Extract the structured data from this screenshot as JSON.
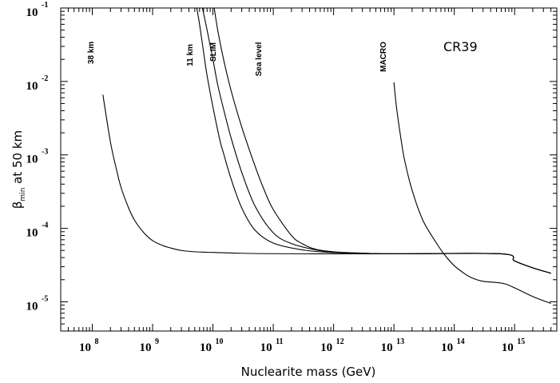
{
  "chart_data": {
    "type": "line",
    "title": "",
    "annotation": "CR39",
    "xlabel": "Nuclearite mass (GeV)",
    "ylabel": {
      "symbol": "β",
      "subscript": "min",
      "rest": " at 50 km"
    },
    "x_scale": "log",
    "y_scale": "log",
    "xlim": [
      30000000.0,
      5000000000000000.0
    ],
    "ylim": [
      4e-06,
      0.1
    ],
    "x_ticks": [
      {
        "base": "10",
        "exp": "8",
        "value": 100000000.0
      },
      {
        "base": "10",
        "exp": "9",
        "value": 1000000000.0
      },
      {
        "base": "10",
        "exp": "10",
        "value": 10000000000.0
      },
      {
        "base": "10",
        "exp": "11",
        "value": 100000000000.0
      },
      {
        "base": "10",
        "exp": "12",
        "value": 1000000000000.0
      },
      {
        "base": "10",
        "exp": "13",
        "value": 10000000000000.0
      },
      {
        "base": "10",
        "exp": "14",
        "value": 100000000000000.0
      },
      {
        "base": "10",
        "exp": "15",
        "value": 1000000000000000.0
      }
    ],
    "y_ticks": [
      {
        "base": "10",
        "exp": "-1",
        "value": 0.1
      },
      {
        "base": "10",
        "exp": "-2",
        "value": 0.01
      },
      {
        "base": "10",
        "exp": "-3",
        "value": 0.001
      },
      {
        "base": "10",
        "exp": "-4",
        "value": 0.0001
      },
      {
        "base": "10",
        "exp": "-5",
        "value": 1e-05
      }
    ],
    "series": [
      {
        "name": "38 km",
        "x": [
          150000000.0,
          200000000.0,
          250000000.0,
          300000000.0,
          400000000.0,
          500000000.0,
          700000000.0,
          1000000000.0,
          1500000000.0,
          2000000000.0,
          3000000000.0,
          5000000000.0,
          10000000000.0,
          30000000000.0,
          100000000000.0,
          1000000000000.0,
          10000000000000.0,
          600000000000000.0,
          1000000000000000.0,
          2000000000000000.0,
          4000000000000000.0
        ],
        "y": [
          0.0066,
          0.0015,
          0.00065,
          0.00036,
          0.00019,
          0.00013,
          8.9e-05,
          6.8e-05,
          5.8e-05,
          5.4e-05,
          5e-05,
          4.8e-05,
          4.7e-05,
          4.58e-05,
          4.52e-05,
          4.5e-05,
          4.5e-05,
          4.5e-05,
          3.6e-05,
          2.9e-05,
          2.45e-05
        ]
      },
      {
        "name": "11 km",
        "x": [
          5400000000.0,
          6000000000.0,
          7000000000.0,
          8000000000.0,
          10000000000.0,
          13000000000.0,
          15000000000.0,
          20000000000.0,
          30000000000.0,
          50000000000.0,
          100000000000.0,
          300000000000.0,
          1000000000000.0,
          10000000000000.0,
          600000000000000.0,
          1000000000000000.0,
          2000000000000000.0,
          4000000000000000.0
        ],
        "y": [
          0.1,
          0.06,
          0.025,
          0.012,
          0.0045,
          0.0016,
          0.00105,
          0.00047,
          0.00019,
          9.4e-05,
          6.3e-05,
          5.1e-05,
          4.68e-05,
          4.5e-05,
          4.5e-05,
          3.6e-05,
          2.9e-05,
          2.45e-05
        ]
      },
      {
        "name": "SLIM",
        "x": [
          6700000000.0,
          8000000000.0,
          10000000000.0,
          12000000000.0,
          15000000000.0,
          20000000000.0,
          30000000000.0,
          50000000000.0,
          100000000000.0,
          200000000000.0,
          500000000000.0,
          1000000000000.0,
          3000000000000.0,
          10000000000000.0,
          600000000000000.0,
          1000000000000000.0,
          2000000000000000.0,
          4000000000000000.0
        ],
        "y": [
          0.1,
          0.05,
          0.02,
          0.009,
          0.0042,
          0.0017,
          0.00058,
          0.0002,
          8.7e-05,
          6.2e-05,
          5.1e-05,
          4.75e-05,
          4.58e-05,
          4.5e-05,
          4.5e-05,
          3.6e-05,
          2.9e-05,
          2.45e-05
        ]
      },
      {
        "name": "Sea level",
        "x": [
          10500000000.0,
          12000000000.0,
          15000000000.0,
          20000000000.0,
          30000000000.0,
          50000000000.0,
          70000000000.0,
          100000000000.0,
          200000000000.0,
          300000000000.0,
          500000000000.0,
          1000000000000.0,
          3000000000000.0,
          10000000000000.0,
          600000000000000.0,
          1000000000000000.0,
          2000000000000000.0,
          4000000000000000.0
        ],
        "y": [
          0.1,
          0.05,
          0.02,
          0.0075,
          0.0024,
          0.0007,
          0.00034,
          0.00018,
          8e-05,
          6.2e-05,
          5.2e-05,
          4.8e-05,
          4.6e-05,
          4.5e-05,
          4.5e-05,
          3.6e-05,
          2.9e-05,
          2.45e-05
        ]
      },
      {
        "name": "MACRO",
        "x": [
          10000000000000.0,
          11000000000000.0,
          13000000000000.0,
          15000000000000.0,
          20000000000000.0,
          30000000000000.0,
          50000000000000.0,
          70000000000000.0,
          100000000000000.0,
          150000000000000.0,
          200000000000000.0,
          300000000000000.0,
          500000000000000.0,
          700000000000000.0,
          1000000000000000.0,
          2000000000000000.0,
          4000000000000000.0
        ],
        "y": [
          0.0097,
          0.0045,
          0.0017,
          0.00085,
          0.00033,
          0.00013,
          6.4e-05,
          4.3e-05,
          3.1e-05,
          2.4e-05,
          2.1e-05,
          1.9e-05,
          1.83e-05,
          1.75e-05,
          1.55e-05,
          1.18e-05,
          9.5e-06
        ]
      }
    ]
  }
}
